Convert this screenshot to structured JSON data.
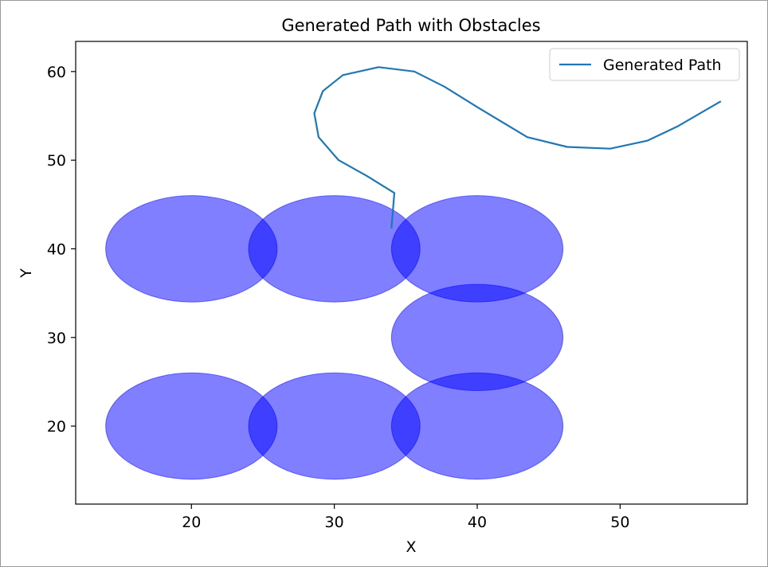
{
  "chart_data": {
    "type": "line",
    "title": "Generated Path with Obstacles",
    "xlabel": "X",
    "ylabel": "Y",
    "xlim": [
      11.9,
      58.9
    ],
    "ylim": [
      11.2,
      63.4
    ],
    "xticks": [
      20,
      30,
      40,
      50
    ],
    "yticks": [
      20,
      30,
      40,
      50,
      60
    ],
    "grid": false,
    "legend": {
      "placement": "top-right",
      "entries": [
        "Generated Path"
      ]
    },
    "series": [
      {
        "name": "Generated Path",
        "color": "#1f77b4",
        "x": [
          34.0,
          34.2,
          32.3,
          30.3,
          28.9,
          28.6,
          29.2,
          30.6,
          33.1,
          35.6,
          37.7,
          40.0,
          43.5,
          46.3,
          49.3,
          51.9,
          54.0,
          57.0
        ],
        "y": [
          42.4,
          46.3,
          48.2,
          50.0,
          52.6,
          55.3,
          57.8,
          59.6,
          60.5,
          60.0,
          58.3,
          56.0,
          52.6,
          51.5,
          51.3,
          52.2,
          53.8,
          56.6
        ]
      }
    ],
    "obstacles": {
      "color": "#0000ff",
      "opacity": 0.5,
      "shape": "circle",
      "radius": 6,
      "centers": [
        [
          20,
          40
        ],
        [
          30,
          40
        ],
        [
          40,
          40
        ],
        [
          40,
          30
        ],
        [
          20,
          20
        ],
        [
          30,
          20
        ],
        [
          40,
          20
        ]
      ]
    }
  }
}
